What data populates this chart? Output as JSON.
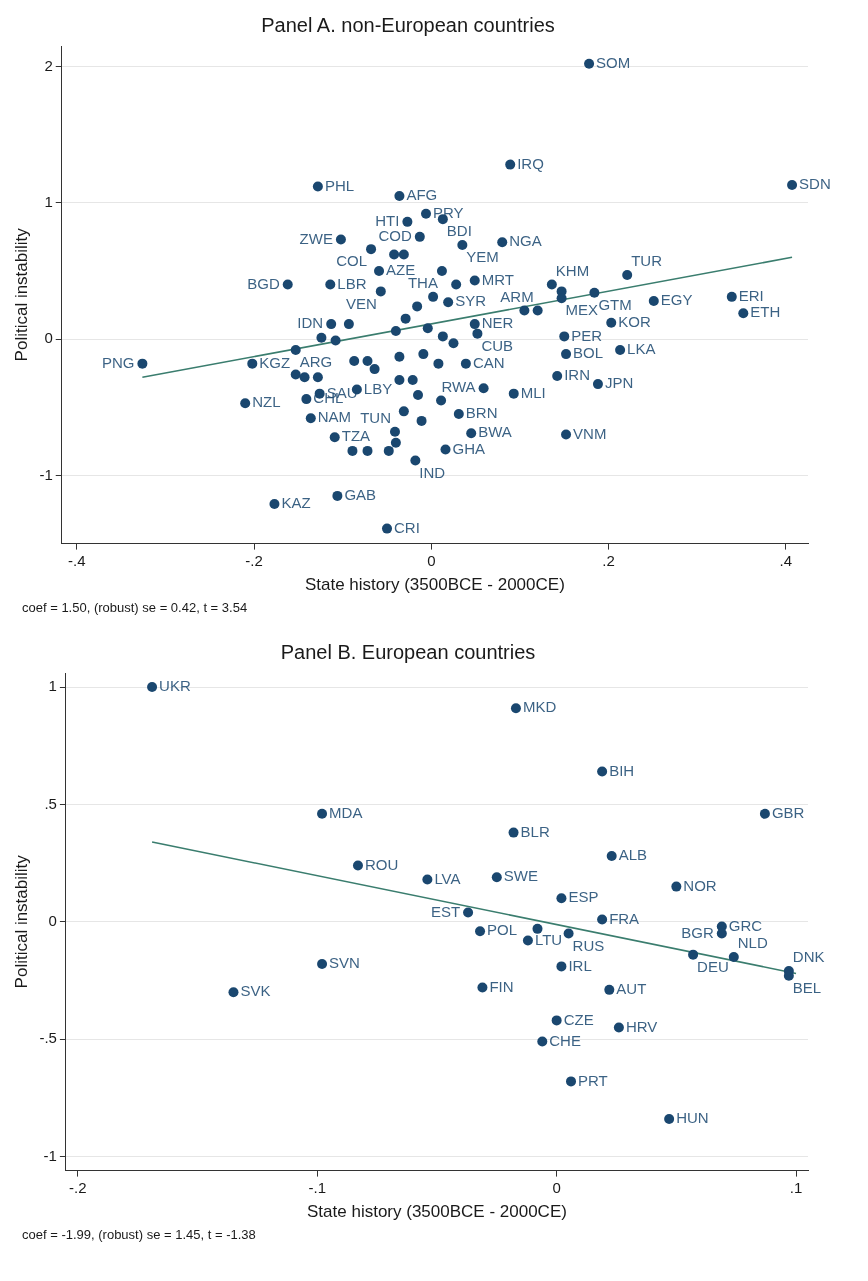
{
  "chart_data": [
    {
      "type": "scatter",
      "title": "Panel A. non-European countries",
      "xlabel": "State history (3500BCE - 2000CE)",
      "ylabel": "Political instability",
      "grid": "y",
      "xlim": [
        -0.417,
        0.425
      ],
      "xticks": [
        {
          "value": -0.4,
          "label": "-.4"
        },
        {
          "value": -0.2,
          "label": "-.2"
        },
        0,
        {
          "value": 0.2,
          "label": ".2"
        },
        {
          "value": 0.4,
          "label": ".4"
        }
      ],
      "ylim": [
        -1.5,
        2.15
      ],
      "yticks": [
        -1,
        0,
        1,
        2
      ],
      "series": [
        {
          "type": "scatter",
          "marker": "circle",
          "color": "#1a476f",
          "x": [
            0.178,
            0.089,
            0.407,
            -0.128,
            -0.036,
            -0.006,
            0.013,
            -0.027,
            -0.102,
            -0.013,
            0.035,
            0.08,
            -0.068,
            -0.042,
            -0.031,
            -0.059,
            0.012,
            0.049,
            0.028,
            0.136,
            0.147,
            0.221,
            0.184,
            0.147,
            0.251,
            0.339,
            0.352,
            -0.162,
            -0.114,
            -0.057,
            0.019,
            0.12,
            0.105,
            0.203,
            0.049,
            0.052,
            0.15,
            0.152,
            0.213,
            0.142,
            0.188,
            0.059,
            0.093,
            0.031,
            0.045,
            0.152,
            0.016,
            -0.326,
            -0.202,
            -0.153,
            -0.21,
            -0.141,
            -0.136,
            -0.126,
            -0.084,
            -0.109,
            -0.041,
            -0.106,
            -0.177,
            -0.05,
            -0.018,
            0.039,
            -0.113,
            -0.093,
            -0.124,
            -0.108,
            -0.087,
            -0.072,
            -0.064,
            -0.036,
            -0.036,
            -0.021,
            -0.04,
            -0.029,
            -0.016,
            0.002,
            -0.004,
            0.013,
            0.025,
            -0.009,
            0.008,
            -0.015,
            0.011,
            -0.031,
            -0.048,
            -0.072,
            -0.089,
            -0.011,
            -0.04,
            -0.153,
            -0.143,
            -0.128
          ],
          "values": [
            2.02,
            1.28,
            1.13,
            1.12,
            1.05,
            0.92,
            0.88,
            0.86,
            0.73,
            0.75,
            0.69,
            0.71,
            0.66,
            0.62,
            0.62,
            0.5,
            0.5,
            0.43,
            0.4,
            0.4,
            0.35,
            0.47,
            0.34,
            0.3,
            0.28,
            0.31,
            0.19,
            0.4,
            0.4,
            0.35,
            0.27,
            0.21,
            0.21,
            0.12,
            0.11,
            0.04,
            0.02,
            -0.11,
            -0.08,
            -0.27,
            -0.33,
            -0.36,
            -0.4,
            -0.55,
            -0.69,
            -0.7,
            -0.81,
            -0.18,
            -0.18,
            -0.08,
            -0.47,
            -0.44,
            -0.58,
            -0.4,
            -0.37,
            -0.72,
            -0.68,
            -1.15,
            -1.21,
            -1.39,
            -0.89,
            -0.18,
            0.11,
            0.11,
            0.01,
            -0.01,
            -0.16,
            -0.16,
            -0.22,
            -0.13,
            -0.3,
            -0.3,
            0.06,
            0.15,
            0.24,
            0.31,
            0.08,
            0.02,
            -0.03,
            -0.11,
            -0.18,
            -0.41,
            -0.45,
            -0.53,
            -0.82,
            -0.82,
            -0.82,
            -0.6,
            -0.76,
            -0.26,
            -0.28,
            -0.28
          ]
        },
        {
          "type": "line",
          "marker": "none",
          "color": "#3a7d6e",
          "x": [
            -0.326,
            0.407
          ],
          "values": [
            -0.28,
            0.6
          ]
        }
      ],
      "annotations": [
        {
          "text": "SOM",
          "x": 0.178,
          "y": 2.02
        },
        {
          "text": "IRQ",
          "x": 0.089,
          "y": 1.28
        },
        {
          "text": "SDN",
          "x": 0.407,
          "y": 1.13
        },
        {
          "text": "PHL",
          "x": -0.128,
          "y": 1.12
        },
        {
          "text": "AFG",
          "x": -0.036,
          "y": 1.05
        },
        {
          "text": "PRY",
          "x": -0.006,
          "y": 0.92
        },
        {
          "text": "BDI",
          "x": 0.013,
          "y": 0.88
        },
        {
          "text": "HTI",
          "x": -0.027,
          "y": 0.86
        },
        {
          "text": "ZWE",
          "x": -0.102,
          "y": 0.73
        },
        {
          "text": "COD",
          "x": -0.013,
          "y": 0.75
        },
        {
          "text": "YEM",
          "x": 0.035,
          "y": 0.69
        },
        {
          "text": "NGA",
          "x": 0.08,
          "y": 0.71
        },
        {
          "text": "COL",
          "x": -0.068,
          "y": 0.66
        },
        {
          "text": "AZE",
          "x": -0.059,
          "y": 0.5
        },
        {
          "text": "THA",
          "x": 0.012,
          "y": 0.5
        },
        {
          "text": "MRT",
          "x": 0.049,
          "y": 0.43
        },
        {
          "text": "KHM",
          "x": 0.136,
          "y": 0.4
        },
        {
          "text": "TUR",
          "x": 0.221,
          "y": 0.47
        },
        {
          "text": "GTM",
          "x": 0.184,
          "y": 0.34
        },
        {
          "text": "MEX",
          "x": 0.147,
          "y": 0.3
        },
        {
          "text": "EGY",
          "x": 0.251,
          "y": 0.28
        },
        {
          "text": "ERI",
          "x": 0.339,
          "y": 0.31
        },
        {
          "text": "ETH",
          "x": 0.352,
          "y": 0.19
        },
        {
          "text": "BGD",
          "x": -0.162,
          "y": 0.4
        },
        {
          "text": "LBR",
          "x": -0.114,
          "y": 0.4
        },
        {
          "text": "VEN",
          "x": -0.057,
          "y": 0.35
        },
        {
          "text": "SYR",
          "x": 0.019,
          "y": 0.27
        },
        {
          "text": "ARM",
          "x": 0.12,
          "y": 0.21
        },
        {
          "text": "KOR",
          "x": 0.203,
          "y": 0.12
        },
        {
          "text": "NER",
          "x": 0.049,
          "y": 0.11
        },
        {
          "text": "CUB",
          "x": 0.052,
          "y": 0.04
        },
        {
          "text": "PER",
          "x": 0.15,
          "y": 0.02
        },
        {
          "text": "BOL",
          "x": 0.152,
          "y": -0.11
        },
        {
          "text": "LKA",
          "x": 0.213,
          "y": -0.08
        },
        {
          "text": "IRN",
          "x": 0.142,
          "y": -0.27
        },
        {
          "text": "JPN",
          "x": 0.188,
          "y": -0.33
        },
        {
          "text": "RWA",
          "x": 0.059,
          "y": -0.36
        },
        {
          "text": "MLI",
          "x": 0.093,
          "y": -0.4
        },
        {
          "text": "BRN",
          "x": 0.031,
          "y": -0.55
        },
        {
          "text": "BWA",
          "x": 0.045,
          "y": -0.69
        },
        {
          "text": "VNM",
          "x": 0.152,
          "y": -0.7
        },
        {
          "text": "GHA",
          "x": 0.016,
          "y": -0.81
        },
        {
          "text": "PNG",
          "x": -0.326,
          "y": -0.18
        },
        {
          "text": "KGZ",
          "x": -0.202,
          "y": -0.18
        },
        {
          "text": "ARG",
          "x": -0.153,
          "y": -0.08
        },
        {
          "text": "NZL",
          "x": -0.21,
          "y": -0.47
        },
        {
          "text": "CHL",
          "x": -0.141,
          "y": -0.44
        },
        {
          "text": "NAM",
          "x": -0.136,
          "y": -0.58
        },
        {
          "text": "SAU",
          "x": -0.126,
          "y": -0.4
        },
        {
          "text": "LBY",
          "x": -0.084,
          "y": -0.37
        },
        {
          "text": "TZA",
          "x": -0.109,
          "y": -0.72
        },
        {
          "text": "TUN",
          "x": -0.041,
          "y": -0.68
        },
        {
          "text": "GAB",
          "x": -0.106,
          "y": -1.15
        },
        {
          "text": "KAZ",
          "x": -0.177,
          "y": -1.21
        },
        {
          "text": "CRI",
          "x": -0.05,
          "y": -1.39
        },
        {
          "text": "IND",
          "x": -0.018,
          "y": -0.89
        },
        {
          "text": "CAN",
          "x": 0.039,
          "y": -0.18
        },
        {
          "text": "IDN",
          "x": -0.113,
          "y": 0.11
        },
        "coef = 1.50, (robust) se = 0.42, t = 3.54"
      ]
    },
    {
      "type": "scatter",
      "title": "Panel B. European countries",
      "xlabel": "State history (3500BCE - 2000CE)",
      "ylabel": "Political instability",
      "grid": "y",
      "xlim": [
        -0.205,
        0.105
      ],
      "xticks": [
        {
          "value": -0.2,
          "label": "-.2"
        },
        {
          "value": -0.1,
          "label": "-.1"
        },
        0,
        {
          "value": 0.1,
          "label": ".1"
        }
      ],
      "ylim": [
        -1.06,
        1.06
      ],
      "yticks": [
        {
          "value": -1,
          "label": "-1"
        },
        {
          "value": -0.5,
          "label": "-.5"
        },
        0,
        {
          "value": 0.5,
          "label": ".5"
        },
        1
      ],
      "series": [
        {
          "type": "scatter",
          "marker": "circle",
          "color": "#1a476f",
          "x": [
            -0.169,
            -0.017,
            0.019,
            0.087,
            -0.098,
            -0.018,
            0.023,
            -0.083,
            -0.054,
            -0.025,
            0.05,
            0.002,
            -0.037,
            0.019,
            0.069,
            0.069,
            -0.032,
            -0.008,
            -0.012,
            0.005,
            0.057,
            0.074,
            0.097,
            0.097,
            -0.098,
            -0.135,
            0.002,
            -0.031,
            0.022,
            0.0,
            0.026,
            -0.006,
            0.006,
            0.047
          ],
          "values": [
            1.0,
            0.91,
            0.64,
            0.46,
            0.46,
            0.38,
            0.28,
            0.24,
            0.18,
            0.19,
            0.15,
            0.1,
            0.04,
            0.01,
            -0.02,
            -0.05,
            -0.04,
            -0.03,
            -0.08,
            -0.05,
            -0.14,
            -0.15,
            -0.21,
            -0.23,
            -0.18,
            -0.3,
            -0.19,
            -0.28,
            -0.29,
            -0.42,
            -0.45,
            -0.51,
            -0.68,
            -0.84
          ]
        },
        {
          "type": "line",
          "marker": "none",
          "color": "#3a7d6e",
          "x": [
            -0.169,
            0.1
          ],
          "values": [
            0.34,
            -0.22
          ]
        }
      ],
      "annotations": [
        {
          "text": "UKR",
          "x": -0.169,
          "y": 1.0
        },
        {
          "text": "MKD",
          "x": -0.017,
          "y": 0.91
        },
        {
          "text": "BIH",
          "x": 0.019,
          "y": 0.64
        },
        {
          "text": "GBR",
          "x": 0.087,
          "y": 0.46
        },
        {
          "text": "MDA",
          "x": -0.098,
          "y": 0.46
        },
        {
          "text": "BLR",
          "x": -0.018,
          "y": 0.38
        },
        {
          "text": "ALB",
          "x": 0.023,
          "y": 0.28
        },
        {
          "text": "ROU",
          "x": -0.083,
          "y": 0.24
        },
        {
          "text": "LVA",
          "x": -0.054,
          "y": 0.18
        },
        {
          "text": "SWE",
          "x": -0.025,
          "y": 0.19
        },
        {
          "text": "NOR",
          "x": 0.05,
          "y": 0.15
        },
        {
          "text": "ESP",
          "x": 0.002,
          "y": 0.1
        },
        {
          "text": "EST",
          "x": -0.037,
          "y": 0.04
        },
        {
          "text": "FRA",
          "x": 0.019,
          "y": 0.01
        },
        {
          "text": "GRC",
          "x": 0.069,
          "y": -0.02
        },
        {
          "text": "BGR",
          "x": 0.069,
          "y": -0.05
        },
        {
          "text": "POL",
          "x": -0.032,
          "y": -0.04
        },
        {
          "text": "LTU",
          "x": -0.012,
          "y": -0.08
        },
        {
          "text": "RUS",
          "x": 0.005,
          "y": -0.05
        },
        {
          "text": "DEU",
          "x": 0.057,
          "y": -0.14
        },
        {
          "text": "NLD",
          "x": 0.074,
          "y": -0.15
        },
        {
          "text": "DNK",
          "x": 0.097,
          "y": -0.21
        },
        {
          "text": "BEL",
          "x": 0.097,
          "y": -0.23
        },
        {
          "text": "SVN",
          "x": -0.098,
          "y": -0.18
        },
        {
          "text": "SVK",
          "x": -0.135,
          "y": -0.3
        },
        {
          "text": "IRL",
          "x": 0.002,
          "y": -0.19
        },
        {
          "text": "FIN",
          "x": -0.031,
          "y": -0.28
        },
        {
          "text": "AUT",
          "x": 0.022,
          "y": -0.29
        },
        {
          "text": "CZE",
          "x": 0.0,
          "y": -0.42
        },
        {
          "text": "HRV",
          "x": 0.026,
          "y": -0.45
        },
        {
          "text": "CHE",
          "x": -0.006,
          "y": -0.51
        },
        {
          "text": "PRT",
          "x": 0.006,
          "y": -0.68
        },
        {
          "text": "HUN",
          "x": 0.047,
          "y": -0.84
        },
        "coef = -1.99, (robust) se = 1.45, t = -1.38"
      ]
    }
  ]
}
